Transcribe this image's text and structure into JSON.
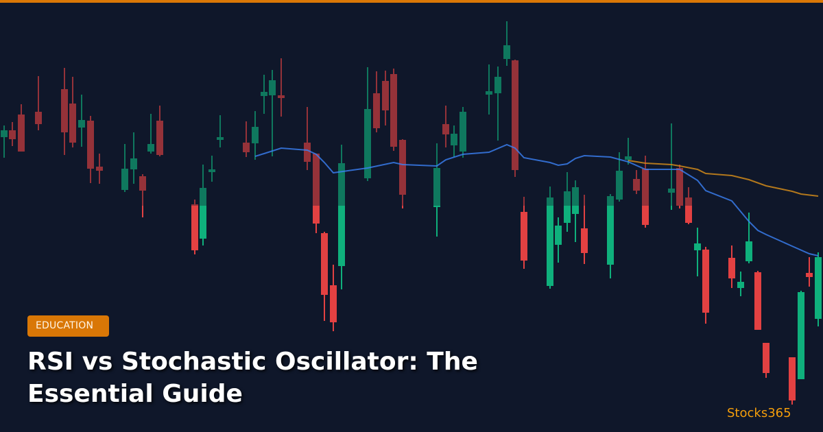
{
  "badge": {
    "label": "EDUCATION"
  },
  "article": {
    "title": "RSI vs Stochastic Oscillator: The Essential Guide"
  },
  "brand": {
    "name": "Stocks365"
  },
  "colors": {
    "background": "#0f172a",
    "accent": "#d97706",
    "brand_text": "#f59e0b",
    "bullish": "#10b981",
    "bearish": "#ef4444",
    "moving_average_fast": "#3b82f6",
    "moving_average_slow": "#d08a1a"
  },
  "icons": {
    "background": "candlestick-chart"
  }
}
